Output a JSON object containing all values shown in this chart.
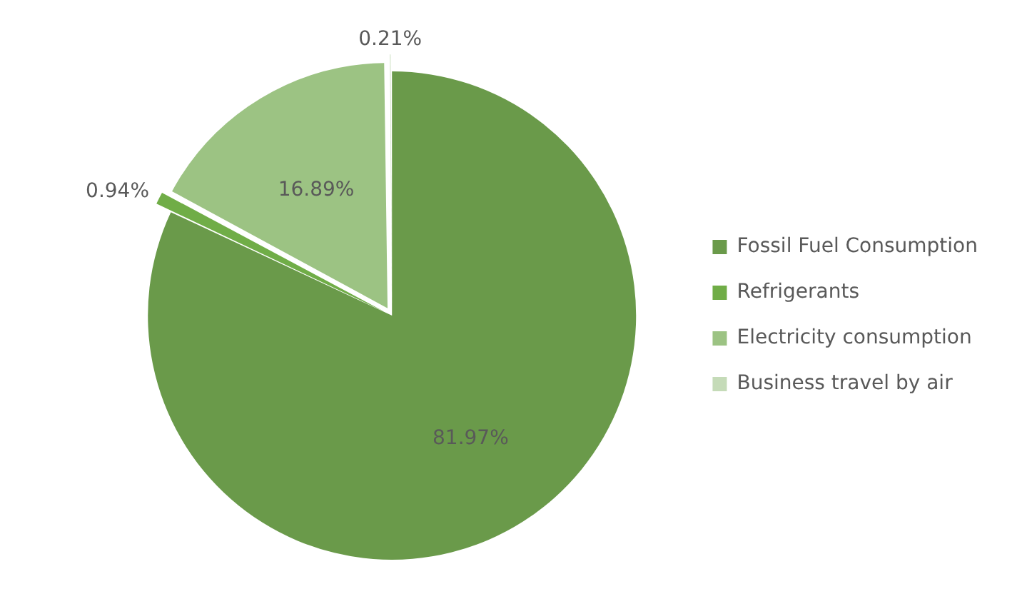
{
  "chart_data": {
    "type": "pie",
    "categories": [
      "Fossil Fuel Consumption",
      "Refrigerants",
      "Electricity consumption",
      "Business travel by air"
    ],
    "values": [
      81.97,
      0.94,
      16.89,
      0.21
    ],
    "colors": [
      "#6a9a4a",
      "#70ad47",
      "#9cc383",
      "#c5dbb8"
    ],
    "value_labels": [
      "81.97%",
      "0.94%",
      "16.89%",
      "0.21%"
    ],
    "legend": "right"
  }
}
